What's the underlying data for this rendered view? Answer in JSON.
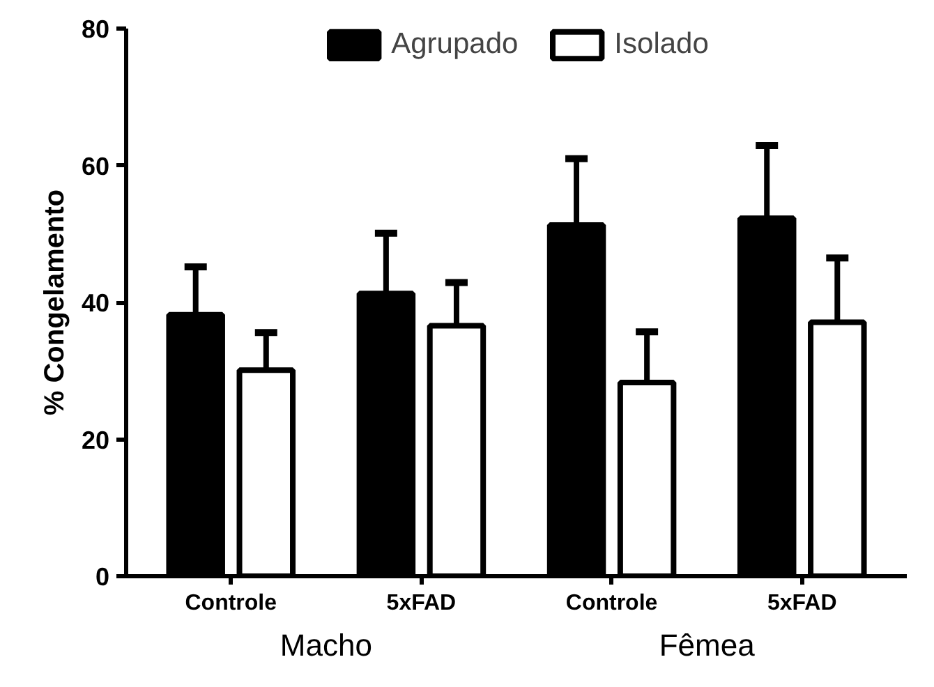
{
  "chart_data": {
    "type": "bar",
    "ylabel": "% Congelamento",
    "categories": [
      "Controle",
      "5xFAD",
      "Controle",
      "5xFAD"
    ],
    "series": [
      {
        "name": "Agrupado",
        "color": "#000000",
        "values": [
          38.2,
          41.3,
          51.3,
          52.3
        ],
        "errors": [
          [
            38.2,
            45.2
          ],
          [
            41.3,
            50.1
          ],
          [
            51.3,
            61.0
          ],
          [
            52.3,
            62.9
          ]
        ]
      },
      {
        "name": "Isolado",
        "color": "#ffffff",
        "values": [
          30.1,
          36.6,
          28.3,
          37.1
        ],
        "errors": [
          [
            30.1,
            35.6
          ],
          [
            36.6,
            42.9
          ],
          [
            28.3,
            35.7
          ],
          [
            37.1,
            46.5
          ]
        ]
      }
    ],
    "annotations": [
      "Macho",
      "Fêmea"
    ],
    "ylim": [
      0,
      80
    ],
    "yticks": [
      0,
      20,
      40,
      60,
      80
    ],
    "grid": false,
    "legend": "top"
  }
}
